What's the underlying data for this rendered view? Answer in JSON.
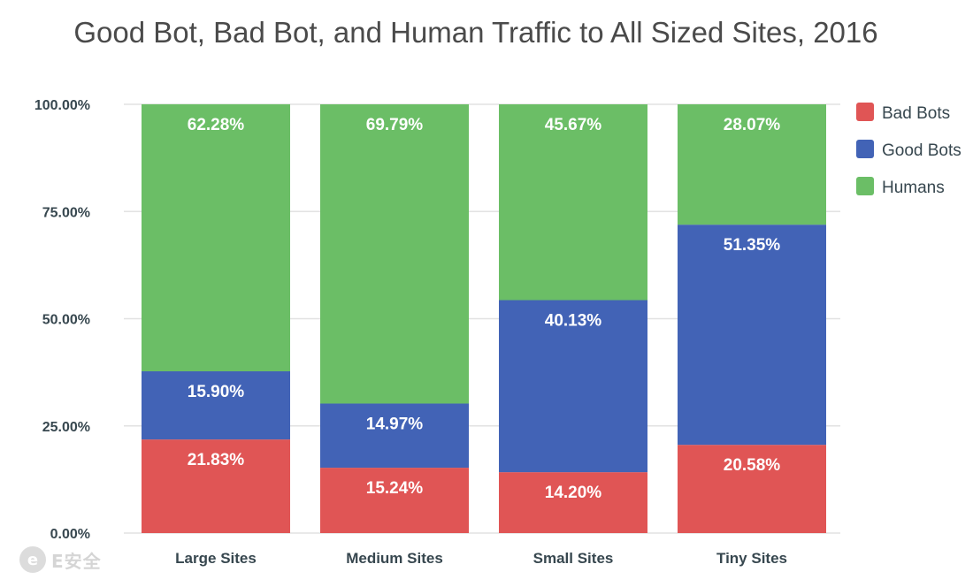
{
  "chart_data": {
    "type": "bar",
    "stacked": true,
    "title": "Good Bot, Bad Bot, and Human Traffic to All Sized Sites, 2016",
    "xlabel": "",
    "ylabel": "",
    "categories": [
      "Large Sites",
      "Medium Sites",
      "Small Sites",
      "Tiny Sites"
    ],
    "series": [
      {
        "name": "Bad Bots",
        "color": "#e05555",
        "values": [
          21.83,
          15.24,
          14.2,
          20.58
        ],
        "labels": [
          "21.83%",
          "15.24%",
          "14.20%",
          "20.58%"
        ]
      },
      {
        "name": "Good Bots",
        "color": "#4263b6",
        "values": [
          15.9,
          14.97,
          40.13,
          51.35
        ],
        "labels": [
          "15.90%",
          "14.97%",
          "40.13%",
          "51.35%"
        ]
      },
      {
        "name": "Humans",
        "color": "#6bbe66",
        "values": [
          62.28,
          69.79,
          45.67,
          28.07
        ],
        "labels": [
          "62.28%",
          "69.79%",
          "45.67%",
          "28.07%"
        ]
      }
    ],
    "yticks": [
      0,
      25,
      50,
      75,
      100
    ],
    "ytick_labels": [
      "0.00%",
      "25.00%",
      "50.00%",
      "75.00%",
      "100.00%"
    ],
    "ylim": [
      0,
      100
    ],
    "grid": true,
    "legend": "right"
  },
  "watermark": {
    "icon_letter": "e",
    "text": "E安全"
  }
}
